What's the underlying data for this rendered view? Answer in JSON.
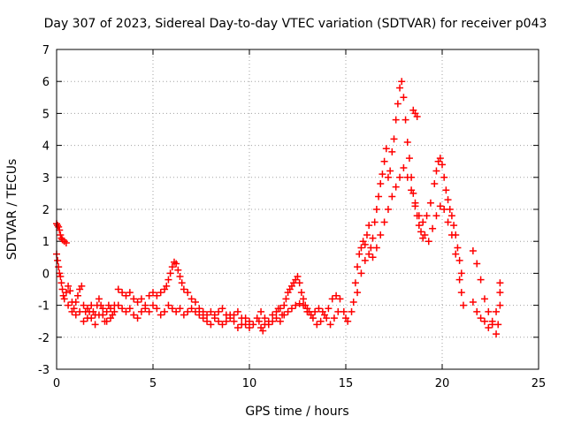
{
  "chart_data": {
    "type": "scatter",
    "title": "Day 307 of 2023, Sidereal Day-to-day VTEC variation (SDTVAR) for receiver p043",
    "xlabel": "GPS time / hours",
    "ylabel": "SDTVAR / TECUs",
    "xlim": [
      0,
      25
    ],
    "ylim": [
      -3,
      7
    ],
    "xticks": [
      0,
      5,
      10,
      15,
      20,
      25
    ],
    "yticks": [
      -3,
      -2,
      -1,
      0,
      1,
      2,
      3,
      4,
      5,
      6,
      7
    ],
    "grid": true,
    "marker": "plus",
    "series": [
      {
        "name": "SDTVAR",
        "color": "#ff0000",
        "points": [
          [
            0.0,
            1.55
          ],
          [
            0.05,
            1.5
          ],
          [
            0.1,
            1.45
          ],
          [
            0.15,
            1.35
          ],
          [
            0.2,
            1.2
          ],
          [
            0.25,
            1.1
          ],
          [
            0.3,
            1.05
          ],
          [
            0.4,
            1.0
          ],
          [
            0.5,
            0.95
          ],
          [
            0.0,
            0.6
          ],
          [
            0.05,
            0.4
          ],
          [
            0.1,
            0.2
          ],
          [
            0.15,
            0.0
          ],
          [
            0.2,
            -0.1
          ],
          [
            0.25,
            -0.3
          ],
          [
            0.3,
            -0.5
          ],
          [
            0.35,
            -0.7
          ],
          [
            0.4,
            -0.8
          ],
          [
            0.5,
            -0.6
          ],
          [
            0.6,
            -0.4
          ],
          [
            0.7,
            -0.55
          ],
          [
            0.8,
            -0.9
          ],
          [
            0.9,
            -1.1
          ],
          [
            1.0,
            -0.9
          ],
          [
            1.1,
            -0.7
          ],
          [
            1.2,
            -0.5
          ],
          [
            1.3,
            -0.4
          ],
          [
            1.4,
            -1.0
          ],
          [
            1.5,
            -1.2
          ],
          [
            1.6,
            -1.4
          ],
          [
            1.7,
            -1.2
          ],
          [
            1.8,
            -1.0
          ],
          [
            1.9,
            -1.2
          ],
          [
            2.0,
            -1.3
          ],
          [
            2.1,
            -1.0
          ],
          [
            2.2,
            -0.8
          ],
          [
            2.3,
            -1.0
          ],
          [
            2.4,
            -1.3
          ],
          [
            2.5,
            -1.5
          ],
          [
            2.6,
            -1.2
          ],
          [
            2.7,
            -1.0
          ],
          [
            2.8,
            -1.1
          ],
          [
            2.9,
            -1.3
          ],
          [
            3.0,
            -1.0
          ],
          [
            0.6,
            -1.0
          ],
          [
            0.8,
            -1.2
          ],
          [
            1.0,
            -1.3
          ],
          [
            1.2,
            -1.2
          ],
          [
            1.4,
            -1.5
          ],
          [
            1.6,
            -1.1
          ],
          [
            1.8,
            -1.4
          ],
          [
            2.0,
            -1.6
          ],
          [
            2.2,
            -1.3
          ],
          [
            2.4,
            -1.1
          ],
          [
            2.6,
            -1.5
          ],
          [
            2.8,
            -1.4
          ],
          [
            3.0,
            -1.2
          ],
          [
            3.2,
            -0.5
          ],
          [
            3.4,
            -0.6
          ],
          [
            3.6,
            -0.7
          ],
          [
            3.8,
            -0.6
          ],
          [
            4.0,
            -0.8
          ],
          [
            4.2,
            -0.9
          ],
          [
            4.4,
            -0.8
          ],
          [
            4.6,
            -1.0
          ],
          [
            4.8,
            -0.7
          ],
          [
            5.0,
            -0.6
          ],
          [
            5.2,
            -0.7
          ],
          [
            5.4,
            -0.6
          ],
          [
            5.6,
            -0.5
          ],
          [
            5.7,
            -0.4
          ],
          [
            5.8,
            -0.2
          ],
          [
            5.9,
            0.0
          ],
          [
            6.0,
            0.2
          ],
          [
            6.1,
            0.35
          ],
          [
            6.2,
            0.3
          ],
          [
            6.3,
            0.1
          ],
          [
            6.4,
            -0.1
          ],
          [
            6.5,
            -0.3
          ],
          [
            6.6,
            -0.5
          ],
          [
            6.8,
            -0.6
          ],
          [
            7.0,
            -0.8
          ],
          [
            7.2,
            -0.9
          ],
          [
            3.2,
            -1.0
          ],
          [
            3.4,
            -1.1
          ],
          [
            3.6,
            -1.2
          ],
          [
            3.8,
            -1.1
          ],
          [
            4.0,
            -1.3
          ],
          [
            4.2,
            -1.4
          ],
          [
            4.4,
            -1.2
          ],
          [
            4.6,
            -1.1
          ],
          [
            4.8,
            -1.2
          ],
          [
            5.0,
            -1.0
          ],
          [
            5.2,
            -1.1
          ],
          [
            5.4,
            -1.3
          ],
          [
            5.6,
            -1.2
          ],
          [
            5.8,
            -1.0
          ],
          [
            6.0,
            -1.1
          ],
          [
            6.2,
            -1.2
          ],
          [
            6.4,
            -1.1
          ],
          [
            6.6,
            -1.3
          ],
          [
            6.8,
            -1.2
          ],
          [
            7.0,
            -1.1
          ],
          [
            7.2,
            -1.2
          ],
          [
            7.4,
            -1.3
          ],
          [
            7.6,
            -1.4
          ],
          [
            7.8,
            -1.5
          ],
          [
            8.0,
            -1.6
          ],
          [
            8.2,
            -1.4
          ],
          [
            8.4,
            -1.5
          ],
          [
            8.6,
            -1.6
          ],
          [
            8.8,
            -1.5
          ],
          [
            9.0,
            -1.3
          ],
          [
            9.2,
            -1.5
          ],
          [
            9.4,
            -1.7
          ],
          [
            9.6,
            -1.6
          ],
          [
            9.8,
            -1.4
          ],
          [
            10.0,
            -1.5
          ],
          [
            7.4,
            -1.1
          ],
          [
            7.6,
            -1.2
          ],
          [
            7.8,
            -1.3
          ],
          [
            8.0,
            -1.2
          ],
          [
            8.2,
            -1.3
          ],
          [
            8.4,
            -1.2
          ],
          [
            8.6,
            -1.1
          ],
          [
            8.8,
            -1.3
          ],
          [
            9.0,
            -1.4
          ],
          [
            9.2,
            -1.3
          ],
          [
            9.4,
            -1.2
          ],
          [
            9.6,
            -1.4
          ],
          [
            9.8,
            -1.6
          ],
          [
            10.0,
            -1.7
          ],
          [
            10.2,
            -1.6
          ],
          [
            10.4,
            -1.4
          ],
          [
            10.5,
            -1.5
          ],
          [
            10.6,
            -1.7
          ],
          [
            10.7,
            -1.8
          ],
          [
            10.8,
            -1.6
          ],
          [
            11.0,
            -1.5
          ],
          [
            11.2,
            -1.3
          ],
          [
            11.4,
            -1.2
          ],
          [
            11.5,
            -1.1
          ],
          [
            10.6,
            -1.2
          ],
          [
            10.8,
            -1.4
          ],
          [
            11.0,
            -1.6
          ],
          [
            11.2,
            -1.5
          ],
          [
            11.4,
            -1.4
          ],
          [
            11.6,
            -1.5
          ],
          [
            11.7,
            -1.3
          ],
          [
            11.8,
            -1.0
          ],
          [
            11.9,
            -0.8
          ],
          [
            12.0,
            -0.6
          ],
          [
            12.1,
            -0.5
          ],
          [
            12.2,
            -0.4
          ],
          [
            12.3,
            -0.3
          ],
          [
            12.4,
            -0.2
          ],
          [
            12.5,
            -0.1
          ],
          [
            12.6,
            -0.3
          ],
          [
            12.7,
            -0.6
          ],
          [
            12.8,
            -0.8
          ],
          [
            12.9,
            -1.0
          ],
          [
            13.0,
            -1.1
          ],
          [
            13.1,
            -1.2
          ],
          [
            11.6,
            -1.1
          ],
          [
            11.8,
            -1.3
          ],
          [
            12.0,
            -1.2
          ],
          [
            12.2,
            -1.1
          ],
          [
            12.4,
            -1.0
          ],
          [
            12.6,
            -0.95
          ],
          [
            12.8,
            -1.0
          ],
          [
            13.0,
            -1.2
          ],
          [
            13.2,
            -1.3
          ],
          [
            13.4,
            -1.2
          ],
          [
            13.6,
            -1.1
          ],
          [
            13.8,
            -1.2
          ],
          [
            14.0,
            -1.4
          ],
          [
            14.2,
            -1.6
          ],
          [
            14.4,
            -1.4
          ],
          [
            14.6,
            -1.2
          ],
          [
            13.3,
            -1.4
          ],
          [
            13.5,
            -1.6
          ],
          [
            13.7,
            -1.5
          ],
          [
            13.9,
            -1.3
          ],
          [
            14.1,
            -1.1
          ],
          [
            14.3,
            -0.8
          ],
          [
            14.5,
            -0.7
          ],
          [
            14.7,
            -0.8
          ],
          [
            14.9,
            -1.2
          ],
          [
            15.0,
            -1.4
          ],
          [
            15.1,
            -1.5
          ],
          [
            15.3,
            -1.2
          ],
          [
            15.4,
            -0.9
          ],
          [
            15.5,
            -0.3
          ],
          [
            15.6,
            0.2
          ],
          [
            15.7,
            0.6
          ],
          [
            15.8,
            0.8
          ],
          [
            15.9,
            1.0
          ],
          [
            16.0,
            0.9
          ],
          [
            16.1,
            1.2
          ],
          [
            16.2,
            1.5
          ],
          [
            16.3,
            0.8
          ],
          [
            16.4,
            1.1
          ],
          [
            16.5,
            1.6
          ],
          [
            16.6,
            2.0
          ],
          [
            16.7,
            2.4
          ],
          [
            16.8,
            2.8
          ],
          [
            16.9,
            3.1
          ],
          [
            17.0,
            3.5
          ],
          [
            17.1,
            3.9
          ],
          [
            17.2,
            3.0
          ],
          [
            17.3,
            3.2
          ],
          [
            17.4,
            3.8
          ],
          [
            17.5,
            4.2
          ],
          [
            17.6,
            4.8
          ],
          [
            17.7,
            5.3
          ],
          [
            17.8,
            5.8
          ],
          [
            17.9,
            6.0
          ],
          [
            18.0,
            5.5
          ],
          [
            18.1,
            4.8
          ],
          [
            18.2,
            4.1
          ],
          [
            18.3,
            3.6
          ],
          [
            18.4,
            3.0
          ],
          [
            18.5,
            2.5
          ],
          [
            18.6,
            2.1
          ],
          [
            18.7,
            1.8
          ],
          [
            18.8,
            1.5
          ],
          [
            18.9,
            1.3
          ],
          [
            19.0,
            1.1
          ],
          [
            15.6,
            -0.6
          ],
          [
            15.8,
            0.0
          ],
          [
            16.0,
            0.4
          ],
          [
            16.2,
            0.6
          ],
          [
            16.4,
            0.5
          ],
          [
            16.6,
            0.8
          ],
          [
            16.8,
            1.2
          ],
          [
            17.0,
            1.6
          ],
          [
            17.2,
            2.0
          ],
          [
            17.4,
            2.4
          ],
          [
            17.6,
            2.7
          ],
          [
            17.8,
            3.0
          ],
          [
            18.0,
            3.3
          ],
          [
            18.2,
            3.0
          ],
          [
            18.4,
            2.6
          ],
          [
            18.6,
            2.2
          ],
          [
            18.8,
            1.8
          ],
          [
            18.5,
            5.1
          ],
          [
            18.6,
            5.0
          ],
          [
            18.7,
            4.9
          ],
          [
            19.0,
            1.6
          ],
          [
            19.2,
            1.8
          ],
          [
            19.4,
            2.2
          ],
          [
            19.6,
            2.8
          ],
          [
            19.7,
            3.2
          ],
          [
            19.8,
            3.5
          ],
          [
            19.9,
            3.6
          ],
          [
            20.0,
            3.4
          ],
          [
            20.1,
            3.0
          ],
          [
            20.2,
            2.6
          ],
          [
            20.3,
            2.3
          ],
          [
            20.4,
            2.0
          ],
          [
            20.5,
            1.8
          ],
          [
            20.6,
            1.5
          ],
          [
            20.7,
            1.2
          ],
          [
            20.8,
            0.8
          ],
          [
            20.9,
            0.4
          ],
          [
            21.0,
            0.0
          ],
          [
            19.1,
            1.2
          ],
          [
            19.3,
            1.0
          ],
          [
            19.5,
            1.4
          ],
          [
            19.7,
            1.8
          ],
          [
            19.9,
            2.1
          ],
          [
            20.1,
            2.0
          ],
          [
            20.3,
            1.6
          ],
          [
            20.5,
            1.2
          ],
          [
            20.7,
            0.6
          ],
          [
            20.9,
            -0.2
          ],
          [
            21.0,
            -0.6
          ],
          [
            21.1,
            -1.0
          ],
          [
            21.6,
            0.7
          ],
          [
            21.8,
            0.3
          ],
          [
            22.0,
            -0.2
          ],
          [
            22.2,
            -0.8
          ],
          [
            22.4,
            -1.2
          ],
          [
            22.6,
            -1.6
          ],
          [
            22.8,
            -1.9
          ],
          [
            22.9,
            -1.6
          ],
          [
            23.0,
            -1.0
          ],
          [
            21.6,
            -0.9
          ],
          [
            21.8,
            -1.2
          ],
          [
            22.0,
            -1.4
          ],
          [
            22.2,
            -1.5
          ],
          [
            22.4,
            -1.7
          ],
          [
            22.6,
            -1.5
          ],
          [
            22.8,
            -1.2
          ],
          [
            23.0,
            -0.6
          ],
          [
            23.0,
            -0.3
          ]
        ]
      }
    ]
  }
}
